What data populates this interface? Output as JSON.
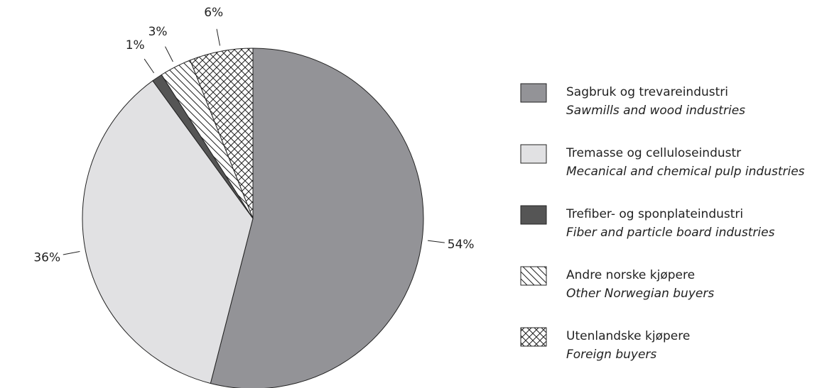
{
  "chart_data": {
    "type": "pie",
    "categories": [
      "Sagbruk og trevareindustri",
      "Tremasse og celluloseindustr",
      "Trefiber- og sponplateindustri",
      "Andre norske kjøpere",
      "Utenlandske kjøpere"
    ],
    "categories_english": [
      "Sawmills and wood industries",
      "Mecanical and chemical pulp industries",
      "Fiber and particle board industries",
      "Other Norwegian buyers",
      "Foreign buyers"
    ],
    "values": [
      54,
      36,
      1,
      3,
      6
    ],
    "value_labels": [
      "54%",
      "36%",
      "1%",
      "3%",
      "6%"
    ],
    "colors": [
      "#939397",
      "#e1e1e3",
      "#555555",
      "#ffffff",
      "#ffffff"
    ],
    "patterns": [
      null,
      null,
      null,
      "diagonal",
      "crosshatch"
    ],
    "legend": "right"
  }
}
